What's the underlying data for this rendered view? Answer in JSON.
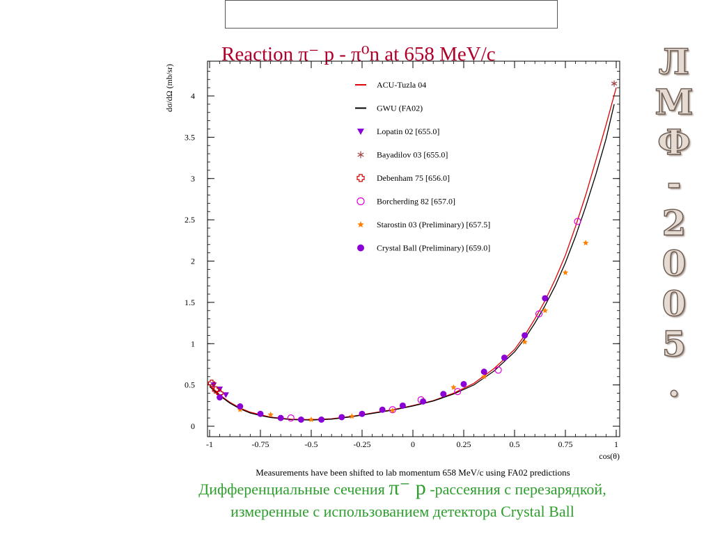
{
  "slide": {
    "title": "Reaction  π⁻ p -  π⁰n at 658 MeV/c",
    "side_letters": [
      "Л",
      "М",
      "Ф",
      "-",
      "2",
      "0",
      "0",
      "5",
      "."
    ],
    "caption_line1_a": "Дифференциальные сечения ",
    "caption_pi": "π⁻ p",
    "caption_line1_b": " -рассеяния с перезарядкой,",
    "caption_line2": "измеренные с использованием детектора Crystal Ball"
  },
  "chart_data": {
    "type": "scatter",
    "xlabel": "cos(θ)",
    "ylabel": "dσ/dΩ (mb/sr)",
    "xlim": [
      -1,
      1
    ],
    "ylim": [
      0,
      4.3
    ],
    "xticks": [
      -1,
      -0.75,
      -0.5,
      -0.25,
      0,
      0.25,
      0.5,
      0.75,
      1
    ],
    "xtick_labels": [
      "-1",
      "-0.75",
      "-0.5",
      "-0.25",
      "0",
      "0.25",
      "0.5",
      "0.75",
      "1"
    ],
    "yticks": [
      0,
      0.5,
      1,
      1.5,
      2,
      2.5,
      3,
      3.5,
      4
    ],
    "ytick_labels": [
      "0",
      "0.5",
      "1",
      "1.5",
      "2",
      "2.5",
      "3",
      "3.5",
      "4"
    ],
    "note": "Measurements have been shifted to lab momentum 658 MeV/c using FA02 predictions",
    "legend_position": "top-right",
    "curves": [
      {
        "name": "ACU-Tuzla 04",
        "color": "#e00000",
        "x": [
          -1,
          -0.95,
          -0.9,
          -0.85,
          -0.8,
          -0.75,
          -0.7,
          -0.6,
          -0.5,
          -0.4,
          -0.3,
          -0.2,
          -0.1,
          0,
          0.1,
          0.2,
          0.3,
          0.4,
          0.5,
          0.55,
          0.6,
          0.65,
          0.7,
          0.75,
          0.8,
          0.85,
          0.9,
          0.95,
          1
        ],
        "y": [
          0.5,
          0.38,
          0.29,
          0.22,
          0.17,
          0.14,
          0.11,
          0.085,
          0.08,
          0.09,
          0.12,
          0.16,
          0.2,
          0.25,
          0.31,
          0.4,
          0.52,
          0.7,
          0.93,
          1.1,
          1.3,
          1.52,
          1.78,
          2.07,
          2.42,
          2.8,
          3.22,
          3.65,
          4.1
        ]
      },
      {
        "name": "GWU (FA02)",
        "color": "#000000",
        "x": [
          -1,
          -0.95,
          -0.9,
          -0.85,
          -0.8,
          -0.75,
          -0.7,
          -0.6,
          -0.5,
          -0.4,
          -0.3,
          -0.2,
          -0.1,
          0,
          0.1,
          0.2,
          0.3,
          0.4,
          0.5,
          0.55,
          0.6,
          0.65,
          0.7,
          0.75,
          0.8,
          0.85,
          0.9,
          0.95,
          0.99
        ],
        "y": [
          0.48,
          0.37,
          0.28,
          0.21,
          0.16,
          0.13,
          0.105,
          0.08,
          0.075,
          0.085,
          0.115,
          0.155,
          0.195,
          0.245,
          0.305,
          0.39,
          0.5,
          0.67,
          0.9,
          1.06,
          1.25,
          1.46,
          1.7,
          1.98,
          2.3,
          2.66,
          3.05,
          3.48,
          3.9
        ]
      }
    ],
    "series": [
      {
        "name": "Lopatin 02  [655.0]",
        "marker": "triangle-down",
        "color": "#8b00d6",
        "x": [
          -0.98,
          -0.95,
          -0.92
        ],
        "y": [
          0.5,
          0.45,
          0.38
        ]
      },
      {
        "name": "Bayadilov 03  [655.0]",
        "marker": "star6",
        "color": "#a04040",
        "x": [
          0.99
        ],
        "y": [
          4.15
        ]
      },
      {
        "name": "Debenham 75  [656.0]",
        "marker": "cross",
        "color": "#d00000",
        "x": [
          -0.99,
          -0.97,
          -0.95
        ],
        "y": [
          0.52,
          0.44,
          0.4
        ]
      },
      {
        "name": "Borcherding 82  [657.0]",
        "marker": "circle-open",
        "color": "#e000e0",
        "x": [
          -0.6,
          -0.1,
          0.04,
          0.22,
          0.42,
          0.62,
          0.81
        ],
        "y": [
          0.1,
          0.2,
          0.32,
          0.42,
          0.68,
          1.36,
          2.48
        ]
      },
      {
        "name": "Starostin 03 (Preliminary)  [657.5]",
        "marker": "star",
        "color": "#ff8000",
        "x": [
          -0.85,
          -0.7,
          -0.5,
          -0.3,
          -0.1,
          0.05,
          0.2,
          0.35,
          0.55,
          0.65,
          0.75,
          0.85
        ],
        "y": [
          0.2,
          0.14,
          0.08,
          0.12,
          0.19,
          0.31,
          0.47,
          0.6,
          1.02,
          1.4,
          1.86,
          2.22
        ]
      },
      {
        "name": "Crystal Ball (Preliminary)  [659.0]",
        "marker": "circle",
        "color": "#8b00d6",
        "x": [
          -0.95,
          -0.85,
          -0.75,
          -0.65,
          -0.55,
          -0.45,
          -0.35,
          -0.25,
          -0.15,
          -0.05,
          0.05,
          0.15,
          0.25,
          0.35,
          0.45,
          0.55,
          0.65
        ],
        "y": [
          0.35,
          0.24,
          0.15,
          0.1,
          0.08,
          0.08,
          0.11,
          0.15,
          0.2,
          0.25,
          0.3,
          0.39,
          0.51,
          0.66,
          0.83,
          1.1,
          1.55
        ]
      }
    ]
  }
}
